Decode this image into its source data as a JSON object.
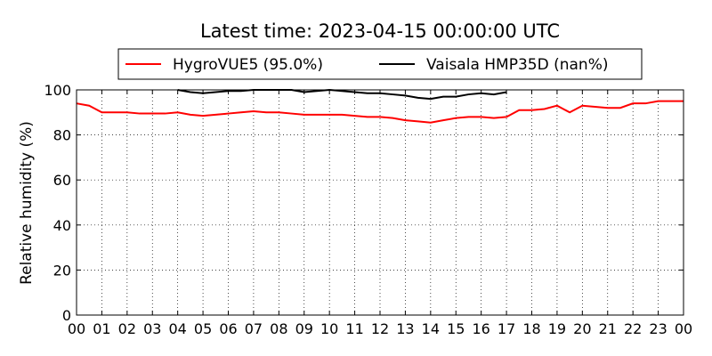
{
  "chart_data": {
    "type": "line",
    "title": "Latest time: 2023-04-15 00:00:00 UTC",
    "y_label": "Relative humidity (%)",
    "x": [
      0,
      0.5,
      1,
      1.5,
      2,
      2.5,
      3,
      3.5,
      4,
      4.5,
      5,
      5.5,
      6,
      6.5,
      7,
      7.5,
      8,
      8.5,
      9,
      9.5,
      10,
      10.5,
      11,
      11.5,
      12,
      12.5,
      13,
      13.5,
      14,
      14.5,
      15,
      15.5,
      16,
      16.5,
      17,
      17.5,
      18,
      18.5,
      19,
      19.5,
      20,
      20.5,
      21,
      21.5,
      22,
      22.5,
      23,
      23.5,
      24
    ],
    "series": [
      {
        "name": "HygroVUE5 (95.0%)",
        "color": "#ff0000",
        "values": [
          94,
          93,
          90,
          90,
          90,
          89.5,
          89.5,
          89.5,
          90,
          89,
          88.5,
          89,
          89.5,
          90,
          90.5,
          90,
          90,
          89.5,
          89,
          89,
          89,
          89,
          88.5,
          88,
          88,
          87.5,
          86.5,
          86,
          85.5,
          86.5,
          87.5,
          88,
          88,
          87.5,
          88,
          91,
          91,
          91.5,
          93,
          90,
          93,
          92.5,
          92,
          92,
          94,
          94,
          95,
          95,
          95
        ]
      },
      {
        "name": "Vaisala HMP35D (nan%)",
        "color": "#000000",
        "values": [
          null,
          null,
          null,
          null,
          null,
          null,
          null,
          null,
          100,
          99,
          98.5,
          99,
          99.5,
          99.5,
          100,
          100,
          100,
          100,
          99,
          99.5,
          100,
          99.5,
          99,
          98.5,
          98.5,
          98,
          97.5,
          96.5,
          96,
          97,
          97,
          98,
          98.5,
          98,
          99,
          null,
          null,
          null,
          null,
          null,
          null,
          null,
          null,
          null,
          null,
          null,
          null,
          null,
          null
        ]
      }
    ],
    "xlim": [
      0,
      24
    ],
    "xticks": [
      {
        "value": 0,
        "label": "00"
      },
      {
        "value": 1,
        "label": "01"
      },
      {
        "value": 2,
        "label": "02"
      },
      {
        "value": 3,
        "label": "03"
      },
      {
        "value": 4,
        "label": "04"
      },
      {
        "value": 5,
        "label": "05"
      },
      {
        "value": 6,
        "label": "06"
      },
      {
        "value": 7,
        "label": "07"
      },
      {
        "value": 8,
        "label": "08"
      },
      {
        "value": 9,
        "label": "09"
      },
      {
        "value": 10,
        "label": "10"
      },
      {
        "value": 11,
        "label": "11"
      },
      {
        "value": 12,
        "label": "12"
      },
      {
        "value": 13,
        "label": "13"
      },
      {
        "value": 14,
        "label": "14"
      },
      {
        "value": 15,
        "label": "15"
      },
      {
        "value": 16,
        "label": "16"
      },
      {
        "value": 17,
        "label": "17"
      },
      {
        "value": 18,
        "label": "18"
      },
      {
        "value": 19,
        "label": "19"
      },
      {
        "value": 20,
        "label": "20"
      },
      {
        "value": 21,
        "label": "21"
      },
      {
        "value": 22,
        "label": "22"
      },
      {
        "value": 23,
        "label": "23"
      },
      {
        "value": 24,
        "label": "00"
      }
    ],
    "ylim": [
      0,
      100
    ],
    "yticks": [
      0,
      20,
      40,
      60,
      80,
      100
    ],
    "grid": true,
    "legend": "top"
  }
}
